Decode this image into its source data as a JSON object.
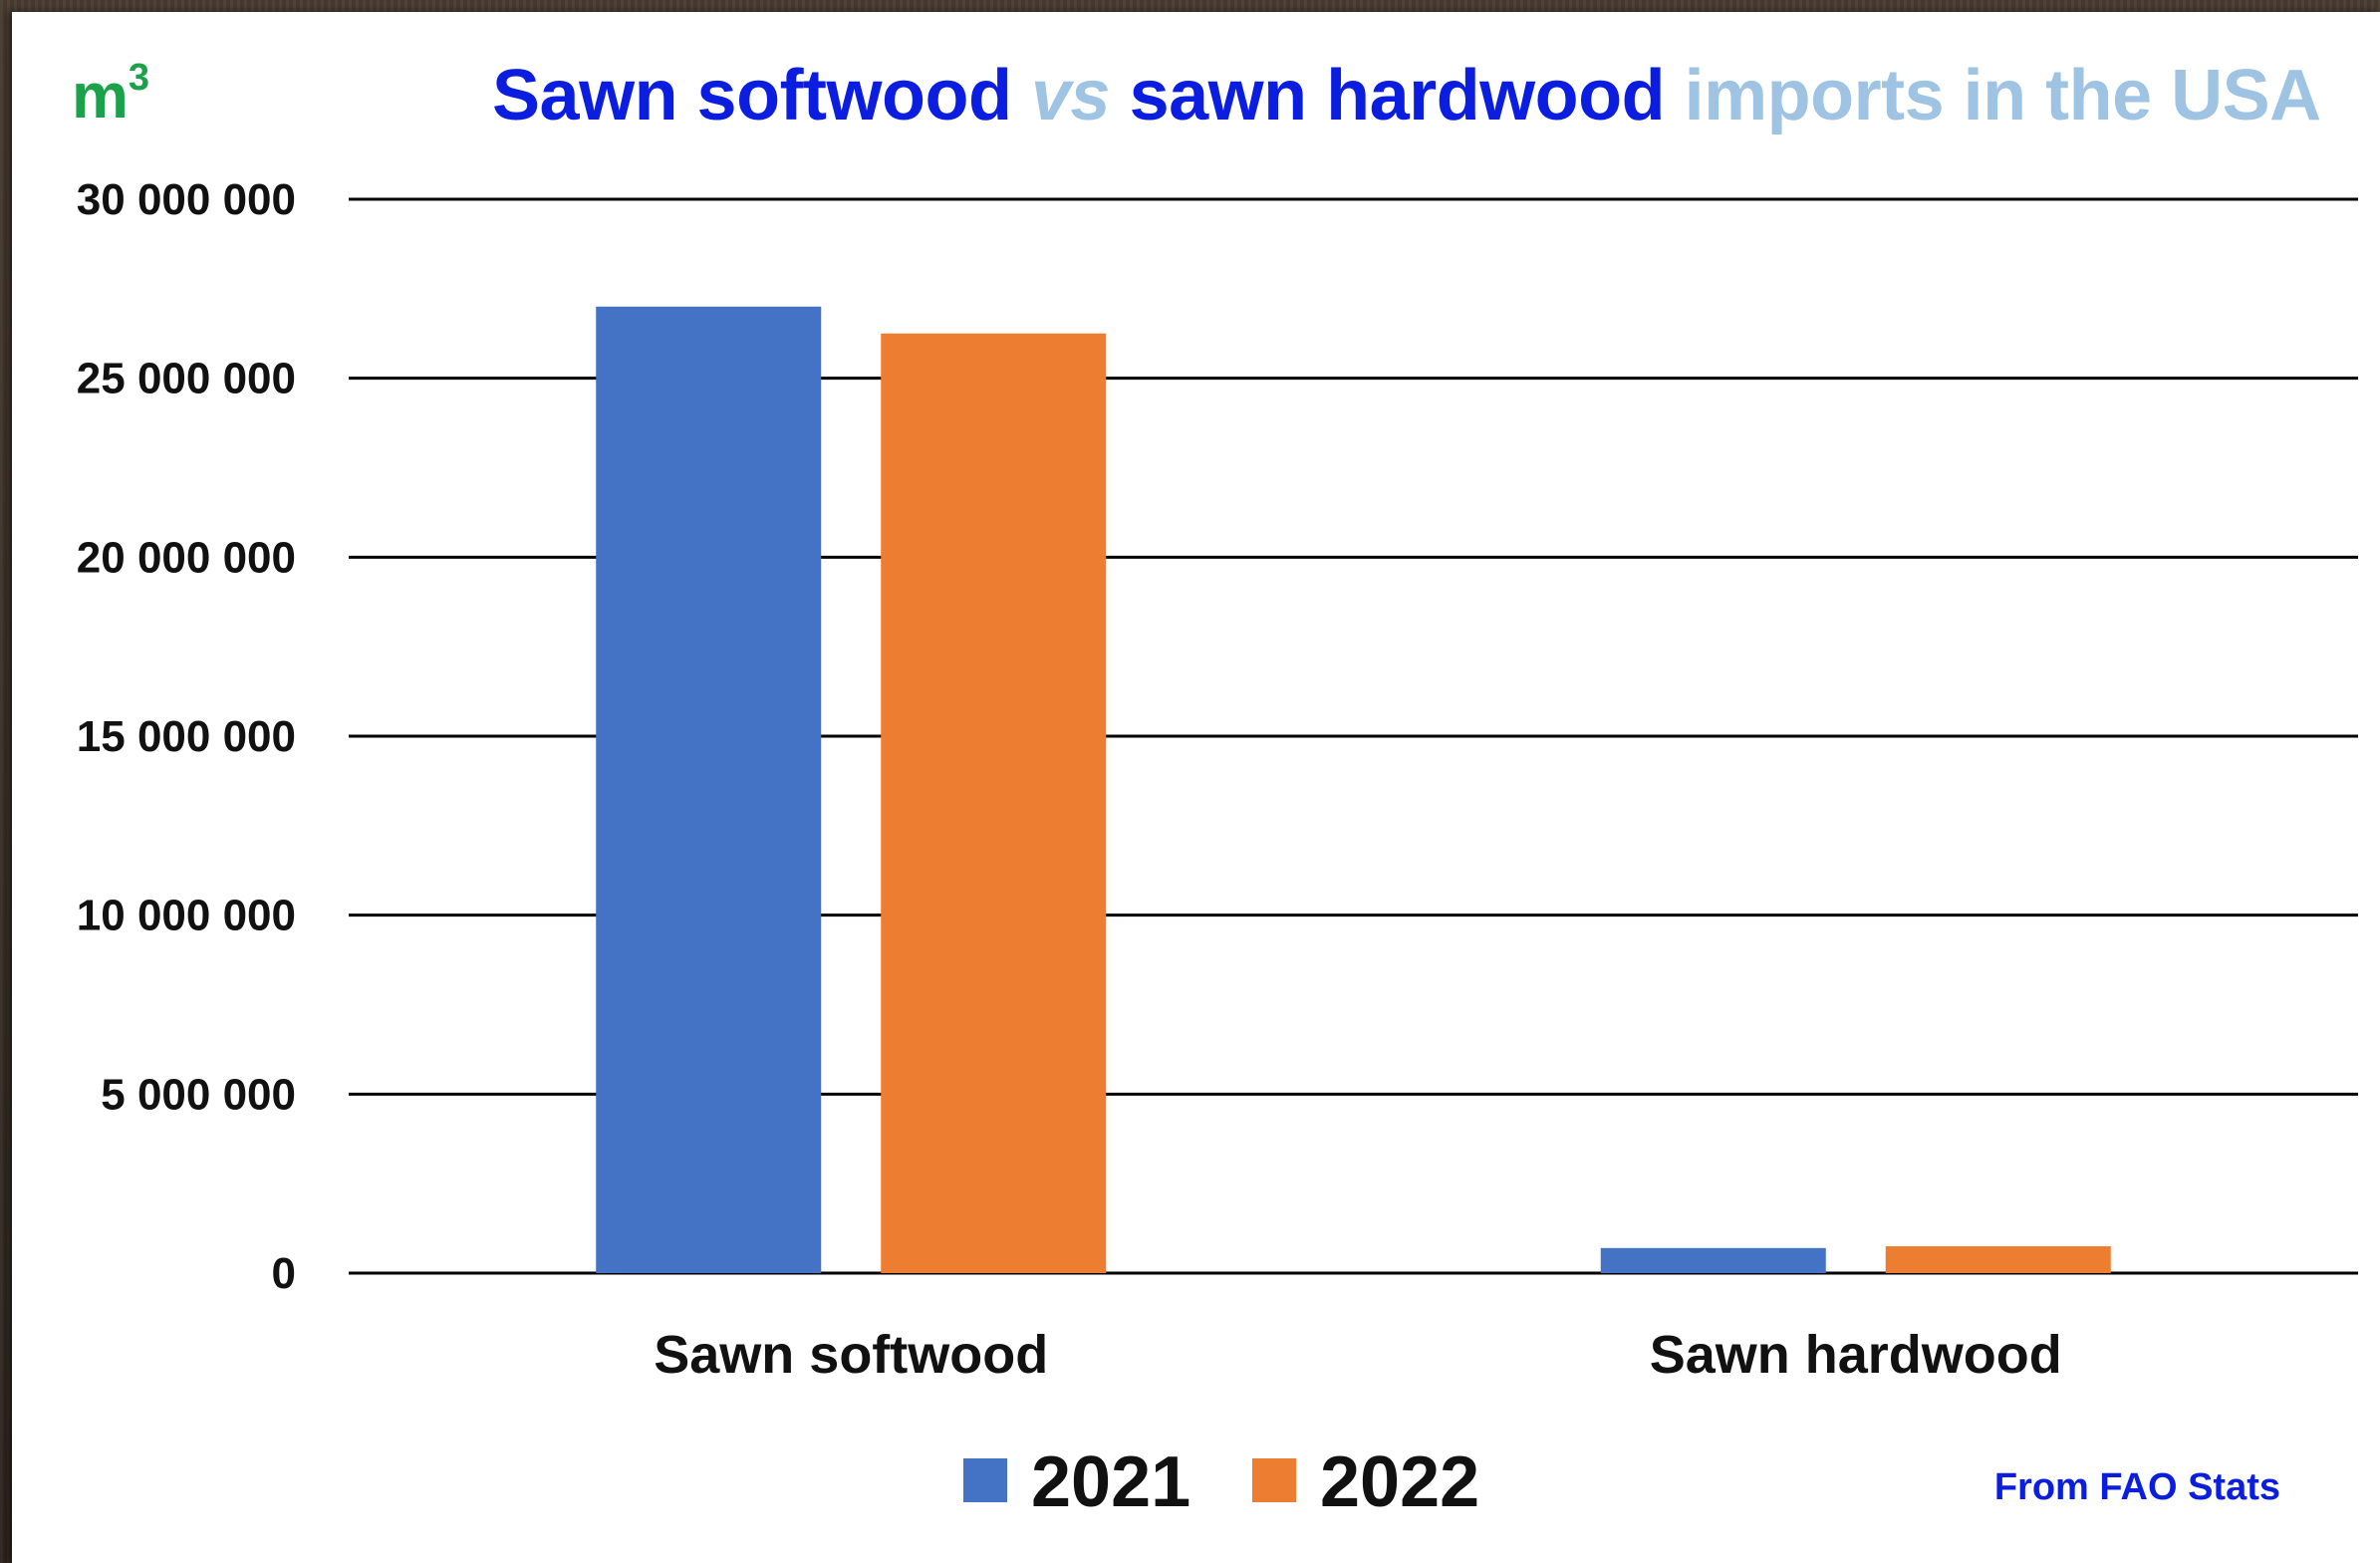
{
  "header": {
    "unit_label": "m",
    "unit_superscript": "3",
    "title_part1": "Sawn softwood ",
    "title_vs": "vs",
    "title_part2": " sawn hardwood",
    "title_part3": " imports in the USA"
  },
  "footer": {
    "source_note": "From FAO Stats"
  },
  "chart_data": {
    "type": "bar",
    "title": "Sawn softwood vs sawn hardwood imports in the USA",
    "ylabel": "m3",
    "xlabel": "",
    "categories": [
      "Sawn softwood",
      "Sawn hardwood"
    ],
    "series": [
      {
        "name": "2021",
        "color": "#4472c4",
        "values": [
          27000000,
          700000
        ]
      },
      {
        "name": "2022",
        "color": "#ed7d31",
        "values": [
          26250000,
          750000
        ]
      }
    ],
    "ylim": [
      0,
      30000000
    ],
    "yticks": [
      0,
      5000000,
      10000000,
      15000000,
      20000000,
      25000000,
      30000000
    ],
    "ytick_labels": [
      "0",
      "5 000 000",
      "10 000 000",
      "15 000 000",
      "20 000 000",
      "25 000 000",
      "30 000 000"
    ],
    "grid": true,
    "legend_position": "bottom"
  }
}
